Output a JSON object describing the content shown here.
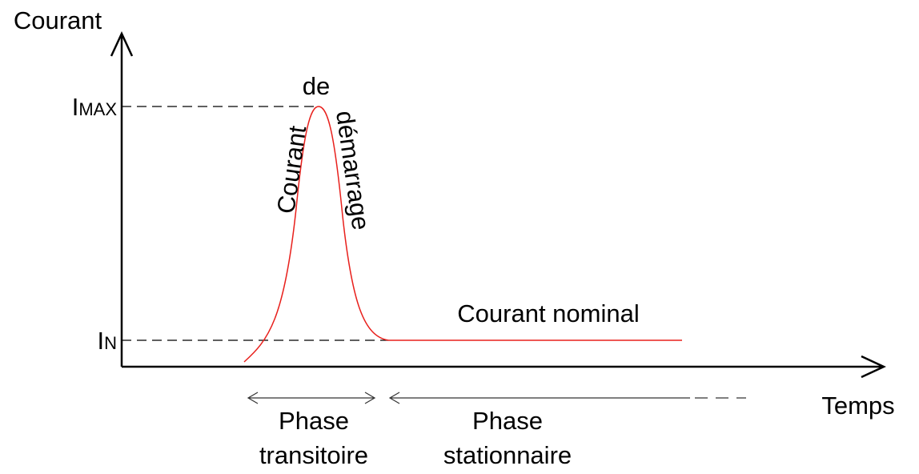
{
  "axes": {
    "y_label": "Courant",
    "x_label": "Temps"
  },
  "levels": [
    {
      "main": "I",
      "sub": "MAX"
    },
    {
      "main": "I",
      "sub": "N"
    }
  ],
  "curve_labels": {
    "peak": [
      "Courant",
      "de",
      "démarrage"
    ],
    "nominal": "Courant nominal"
  },
  "phases": [
    {
      "line1": "Phase",
      "line2": "transitoire"
    },
    {
      "line1": "Phase",
      "line2": "stationnaire"
    }
  ]
}
